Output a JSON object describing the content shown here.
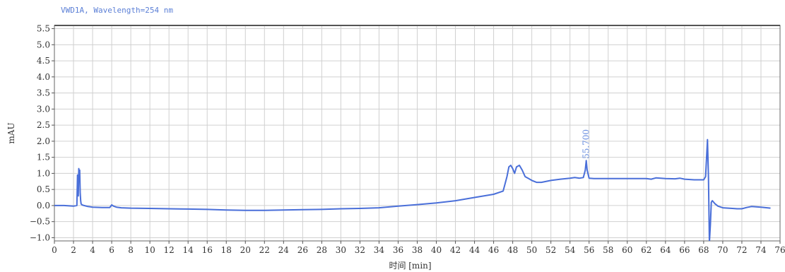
{
  "chart_data": {
    "type": "line",
    "title": "VWD1A, Wavelength=254 nm",
    "xlabel": "时间 [min]",
    "ylabel": "mAU",
    "xlim": [
      0,
      76
    ],
    "ylim": [
      -1.1,
      5.6
    ],
    "x_ticks": [
      0,
      2,
      4,
      6,
      8,
      10,
      12,
      14,
      16,
      18,
      20,
      22,
      24,
      26,
      28,
      30,
      32,
      34,
      36,
      38,
      40,
      42,
      44,
      46,
      48,
      50,
      52,
      54,
      56,
      58,
      60,
      62,
      64,
      66,
      68,
      70,
      72,
      74,
      76
    ],
    "y_ticks": [
      -1.0,
      -0.5,
      0.0,
      0.5,
      1.0,
      1.5,
      2.0,
      2.5,
      3.0,
      3.5,
      4.0,
      4.5,
      5.0,
      5.5
    ],
    "grid": true,
    "line_color": "#4a6fd9",
    "annotations": [
      {
        "text": "55.700",
        "x": 55.7,
        "y": 1.45
      }
    ],
    "series": [
      {
        "x": [
          0,
          1,
          2,
          2.35,
          2.42,
          2.5,
          2.55,
          2.6,
          2.65,
          2.7,
          2.75,
          2.8,
          2.9,
          3.1,
          3.5,
          4,
          5,
          5.8,
          6,
          6.2,
          6.5,
          7,
          8,
          10,
          12,
          14,
          16,
          18,
          20,
          22,
          24,
          26,
          28,
          30,
          32,
          34,
          36,
          38,
          40,
          42,
          44,
          46,
          47,
          47.4,
          47.6,
          47.8,
          48,
          48.2,
          48.4,
          48.7,
          49,
          49.3,
          49.6,
          50,
          50.5,
          51,
          52,
          53,
          54,
          54.5,
          55,
          55.4,
          55.6,
          55.7,
          55.8,
          56,
          56.5,
          58,
          60,
          62,
          62.5,
          63,
          64,
          65,
          65.5,
          66,
          67,
          68,
          68.2,
          68.4,
          68.5,
          68.6,
          68.7,
          68.8,
          68.9,
          69,
          69.2,
          69.5,
          70,
          71,
          71.5,
          72,
          72.5,
          73,
          74,
          75
        ],
        "y": [
          0.0,
          0.0,
          -0.02,
          0.0,
          0.95,
          0.3,
          1.15,
          0.9,
          1.1,
          0.4,
          0.15,
          0.05,
          0.02,
          0.0,
          -0.03,
          -0.05,
          -0.06,
          -0.06,
          0.02,
          -0.02,
          -0.05,
          -0.07,
          -0.08,
          -0.09,
          -0.1,
          -0.11,
          -0.12,
          -0.14,
          -0.15,
          -0.15,
          -0.14,
          -0.13,
          -0.12,
          -0.1,
          -0.09,
          -0.07,
          -0.02,
          0.03,
          0.08,
          0.15,
          0.25,
          0.35,
          0.45,
          0.9,
          1.2,
          1.25,
          1.15,
          1.0,
          1.2,
          1.25,
          1.1,
          0.9,
          0.85,
          0.78,
          0.72,
          0.72,
          0.78,
          0.82,
          0.85,
          0.87,
          0.85,
          0.87,
          1.1,
          1.4,
          1.1,
          0.85,
          0.84,
          0.84,
          0.84,
          0.84,
          0.82,
          0.86,
          0.84,
          0.83,
          0.85,
          0.82,
          0.8,
          0.8,
          0.9,
          2.05,
          0.85,
          -1.15,
          -0.6,
          0.1,
          0.15,
          0.12,
          0.05,
          -0.02,
          -0.07,
          -0.09,
          -0.1,
          -0.1,
          -0.06,
          -0.03,
          -0.05,
          -0.08
        ]
      }
    ]
  }
}
